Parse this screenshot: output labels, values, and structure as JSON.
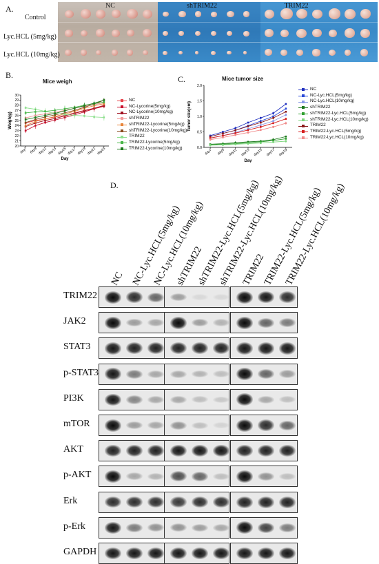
{
  "panels": {
    "a": "A.",
    "b": "B.",
    "c": "C.",
    "d": "D."
  },
  "photo": {
    "row_labels": [
      "Control",
      "Lyc.HCL (5mg/kg)",
      "Lyc.HCL (10mg/kg)"
    ],
    "group_labels": [
      "NC",
      "shTRIM22",
      "TRIM22"
    ]
  },
  "chart_data": [
    {
      "type": "line",
      "title": "Mice weigh",
      "xlabel": "Day",
      "ylabel": "Weigh(g)",
      "ylim": [
        20,
        30
      ],
      "yticks": [
        "20",
        "21",
        "22",
        "23",
        "24",
        "25",
        "26",
        "27",
        "28",
        "29",
        "30"
      ],
      "categories": [
        "day7",
        "day9",
        "day11",
        "day13",
        "day15",
        "day17",
        "day19",
        "day21",
        "day23"
      ],
      "series": [
        {
          "name": "NC",
          "color": "#e8424a",
          "values": [
            24.5,
            25.0,
            25.3,
            25.7,
            26.0,
            26.5,
            27.0,
            27.4,
            28.0
          ]
        },
        {
          "name": "NC-Lycorine(5mg/kg)",
          "color": "#c8102e",
          "values": [
            23.0,
            24.0,
            24.6,
            25.1,
            25.6,
            26.1,
            26.7,
            27.3,
            27.8
          ]
        },
        {
          "name": "NC-Lycorine(10mg/kg)",
          "color": "#a01020",
          "values": [
            23.8,
            24.5,
            25.0,
            25.4,
            25.9,
            26.4,
            26.9,
            27.4,
            27.9
          ]
        },
        {
          "name": "shTRIM22",
          "color": "#f29a9a",
          "values": [
            25.5,
            26.0,
            26.3,
            26.6,
            27.0,
            27.4,
            27.8,
            28.1,
            28.5
          ]
        },
        {
          "name": "shTRIM22-Lycorine(5mg/kg)",
          "color": "#e8853a",
          "values": [
            24.0,
            24.8,
            25.3,
            25.8,
            26.3,
            26.8,
            27.4,
            27.9,
            28.3
          ]
        },
        {
          "name": "shTRIM22-Lycorine(10mg/kg)",
          "color": "#8a4a1f",
          "values": [
            24.6,
            25.2,
            25.7,
            26.1,
            26.5,
            27.0,
            27.6,
            28.2,
            29.0
          ]
        },
        {
          "name": "TRIM22",
          "color": "#8fe08f",
          "values": [
            27.5,
            27.2,
            26.8,
            26.4,
            26.2,
            26.0,
            25.9,
            25.7,
            25.6
          ]
        },
        {
          "name": "TRIM22-Lycorine(5mg/kg)",
          "color": "#49b649",
          "values": [
            26.5,
            26.7,
            26.8,
            27.0,
            27.3,
            27.6,
            28.0,
            28.3,
            28.6
          ]
        },
        {
          "name": "TRIM22-Lycorine(10mg/kg)",
          "color": "#1e7a1e",
          "values": [
            25.2,
            25.6,
            26.0,
            26.4,
            26.9,
            27.4,
            27.9,
            28.4,
            29.0
          ]
        }
      ]
    },
    {
      "type": "line",
      "title": "Mice tumor size",
      "xlabel": "Day",
      "ylabel": "Tumor size(cm)",
      "ylim": [
        0,
        2.0
      ],
      "yticks": [
        "0.0",
        "0.5",
        "1.0",
        "1.5",
        "2.0"
      ],
      "categories": [
        "day7",
        "day9",
        "day11",
        "day13",
        "day15",
        "day17",
        "day19"
      ],
      "series": [
        {
          "name": "NC",
          "color": "#1f2fbf",
          "values": [
            0.38,
            0.5,
            0.62,
            0.8,
            0.95,
            1.1,
            1.4
          ]
        },
        {
          "name": "NC-Lyc.HCL(5mg/kg)",
          "color": "#2a4ad8",
          "values": [
            0.35,
            0.45,
            0.55,
            0.7,
            0.85,
            1.0,
            1.25
          ]
        },
        {
          "name": "NC-Lyc.HCL(10mg/kg)",
          "color": "#8a9ae8",
          "values": [
            0.3,
            0.38,
            0.48,
            0.6,
            0.72,
            0.85,
            1.05
          ]
        },
        {
          "name": "shTRIM22",
          "color": "#1e7a1e",
          "values": [
            0.1,
            0.12,
            0.15,
            0.18,
            0.2,
            0.25,
            0.35
          ]
        },
        {
          "name": "shTRIM22-Lyc.HCL(5mg/kg)",
          "color": "#2fa02f",
          "values": [
            0.08,
            0.1,
            0.12,
            0.15,
            0.18,
            0.22,
            0.28
          ]
        },
        {
          "name": "shTRIM22-Lyc.HCL(10mg/kg)",
          "color": "#7fd67f",
          "values": [
            0.07,
            0.08,
            0.1,
            0.12,
            0.14,
            0.17,
            0.2
          ]
        },
        {
          "name": "TRIM22",
          "color": "#8b1a1a",
          "values": [
            0.35,
            0.45,
            0.55,
            0.68,
            0.8,
            0.95,
            1.15
          ]
        },
        {
          "name": "TRIM22-Lyc.HCL(5mg/kg)",
          "color": "#d61f1f",
          "values": [
            0.3,
            0.38,
            0.46,
            0.56,
            0.66,
            0.78,
            0.92
          ]
        },
        {
          "name": "TRIM22-Lyc.HCL(10mg/kg)",
          "color": "#f08a8a",
          "values": [
            0.25,
            0.32,
            0.4,
            0.48,
            0.56,
            0.66,
            0.78
          ]
        }
      ]
    }
  ],
  "western": {
    "lanes": [
      "NC",
      "NC-Lyc.HCL(5mg/kg)",
      "NC-Lyc.HCL(10mg/kg)",
      "shTRIM22",
      "shTRIM22-Lyc.HCL(5mg/kg)",
      "shTRIM22-Lyc.HCL(10mg/kg)",
      "TRIM22",
      "TRIM22-Lyc.HCL(5mg/kg)",
      "TRIM22-Lyc.HCL(10mg/kg)"
    ],
    "proteins": [
      "TRIM22",
      "JAK2",
      "STAT3",
      "p-STAT3",
      "PI3K",
      "mTOR",
      "AKT",
      "p-AKT",
      "Erk",
      "p-Erk",
      "GAPDH"
    ],
    "intensity": [
      [
        1.0,
        0.85,
        0.6,
        0.35,
        0.05,
        0.05,
        1.0,
        0.95,
        0.85
      ],
      [
        1.0,
        0.35,
        0.3,
        1.0,
        0.35,
        0.25,
        1.0,
        0.6,
        0.5
      ],
      [
        0.95,
        0.9,
        0.9,
        0.9,
        0.9,
        0.9,
        0.95,
        0.95,
        0.95
      ],
      [
        0.95,
        0.5,
        0.3,
        0.3,
        0.25,
        0.2,
        1.0,
        0.6,
        0.35
      ],
      [
        0.95,
        0.45,
        0.3,
        0.3,
        0.2,
        0.15,
        1.0,
        0.3,
        0.2
      ],
      [
        1.0,
        0.35,
        0.3,
        0.4,
        0.2,
        0.1,
        1.0,
        0.85,
        0.6
      ],
      [
        0.9,
        0.9,
        0.9,
        0.95,
        0.95,
        0.95,
        0.9,
        0.9,
        0.9
      ],
      [
        1.0,
        0.3,
        0.25,
        0.7,
        0.6,
        0.2,
        1.0,
        0.4,
        0.2
      ],
      [
        0.85,
        0.85,
        0.85,
        0.8,
        0.85,
        0.85,
        0.9,
        0.9,
        0.9
      ],
      [
        0.95,
        0.5,
        0.4,
        0.4,
        0.35,
        0.3,
        1.0,
        0.75,
        0.5
      ],
      [
        0.95,
        0.95,
        0.95,
        0.95,
        0.95,
        0.95,
        0.95,
        0.95,
        0.95
      ]
    ]
  }
}
